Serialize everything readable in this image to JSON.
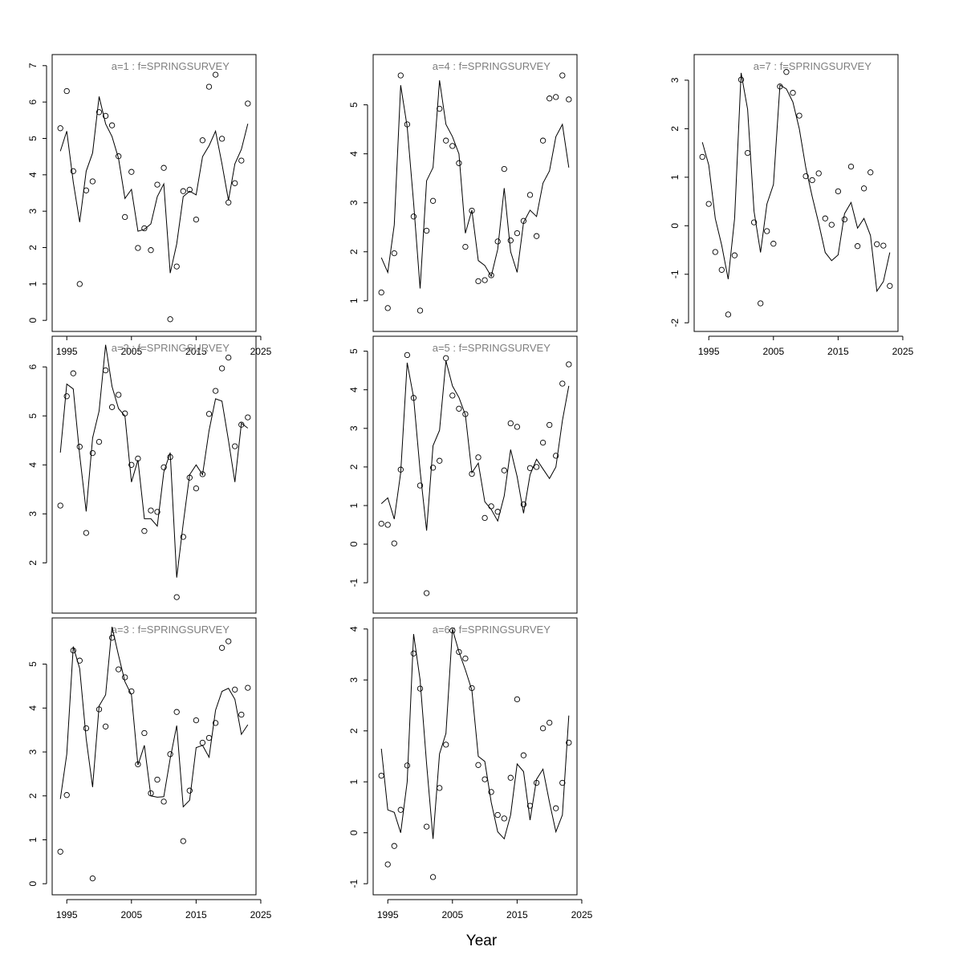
{
  "figure": {
    "xlabel": "Year"
  },
  "chart_data": [
    {
      "type": "line",
      "title": "a=1  :  f=SPRINGSURVEY",
      "xlim": [
        1994,
        2023
      ],
      "ylim": [
        0,
        7
      ],
      "x_ticks": [
        1995,
        2005,
        2015,
        2025
      ],
      "y_ticks": [
        0,
        1,
        2,
        3,
        4,
        5,
        6,
        7
      ],
      "series": [
        {
          "kind": "fitted-line",
          "x": [
            1994,
            1995,
            1996,
            1997,
            1998,
            1999,
            2000,
            2001,
            2002,
            2003,
            2004,
            2005,
            2006,
            2007,
            2008,
            2009,
            2010,
            2011,
            2012,
            2013,
            2014,
            2015,
            2016,
            2017,
            2018,
            2019,
            2020,
            2021,
            2022,
            2023
          ],
          "y": [
            4.65,
            5.2,
            3.8,
            2.7,
            4.1,
            4.6,
            6.15,
            5.4,
            5.05,
            4.45,
            3.35,
            3.6,
            2.45,
            2.5,
            2.65,
            3.4,
            3.75,
            1.3,
            2.1,
            3.4,
            3.55,
            3.45,
            4.5,
            4.8,
            5.2,
            4.3,
            3.3,
            4.3,
            4.7,
            5.4
          ]
        },
        {
          "kind": "observed",
          "x": [
            1994,
            1995,
            1996,
            1997,
            1998,
            1999,
            2000,
            2001,
            2002,
            2003,
            2004,
            2005,
            2006,
            2007,
            2008,
            2009,
            2010,
            2011,
            2012,
            2013,
            2014,
            2015,
            2016,
            2017,
            2018,
            2019,
            2020,
            2021,
            2022,
            2023
          ],
          "y": [
            5.28,
            6.3,
            4.1,
            1.0,
            3.57,
            3.82,
            5.72,
            5.62,
            5.36,
            4.51,
            2.84,
            4.08,
            1.99,
            2.53,
            1.93,
            3.73,
            4.19,
            0.03,
            1.48,
            3.55,
            3.59,
            2.77,
            4.95,
            6.42,
            6.75,
            4.99,
            3.24,
            3.77,
            4.39,
            5.96
          ]
        }
      ]
    },
    {
      "type": "line",
      "title": "a=2  :  f=SPRINGSURVEY",
      "xlim": [
        1994,
        2023
      ],
      "ylim": [
        1.2,
        6.4
      ],
      "x_ticks": [],
      "y_ticks": [
        2,
        3,
        4,
        5,
        6
      ],
      "series": [
        {
          "kind": "fitted-line",
          "x": [
            1994,
            1995,
            1996,
            1997,
            1998,
            1999,
            2000,
            2001,
            2002,
            2003,
            2004,
            2005,
            2006,
            2007,
            2008,
            2009,
            2010,
            2011,
            2012,
            2013,
            2014,
            2015,
            2016,
            2017,
            2018,
            2019,
            2020,
            2021,
            2022,
            2023
          ],
          "y": [
            4.25,
            5.65,
            5.55,
            4.2,
            3.05,
            4.55,
            5.1,
            6.45,
            5.6,
            5.15,
            5.0,
            3.65,
            4.1,
            2.9,
            2.9,
            2.75,
            3.85,
            4.25,
            1.7,
            2.8,
            3.8,
            4.0,
            3.8,
            4.7,
            5.35,
            5.3,
            4.5,
            3.65,
            4.85,
            4.75
          ]
        },
        {
          "kind": "observed",
          "x": [
            1994,
            1995,
            1996,
            1997,
            1998,
            1999,
            2000,
            2001,
            2002,
            2003,
            2004,
            2005,
            2006,
            2007,
            2008,
            2009,
            2010,
            2011,
            2012,
            2013,
            2014,
            2015,
            2016,
            2017,
            2018,
            2019,
            2020,
            2021,
            2022,
            2023
          ],
          "y": [
            3.17,
            5.4,
            5.87,
            4.37,
            2.61,
            4.24,
            4.47,
            5.93,
            5.18,
            5.43,
            5.05,
            4.0,
            4.13,
            2.65,
            3.07,
            3.04,
            3.95,
            4.16,
            1.3,
            2.53,
            3.74,
            3.52,
            3.81,
            5.04,
            5.51,
            5.97,
            6.19,
            4.38,
            4.82,
            4.97
          ]
        }
      ]
    },
    {
      "type": "line",
      "title": "a=3  :  f=SPRINGSURVEY",
      "xlim": [
        1994,
        2023
      ],
      "ylim": [
        0,
        5.8
      ],
      "x_ticks": [
        1995,
        2005,
        2015,
        2025
      ],
      "y_ticks": [
        0,
        1,
        2,
        3,
        4,
        5
      ],
      "series": [
        {
          "kind": "fitted-line",
          "x": [
            1994,
            1995,
            1996,
            1997,
            1998,
            1999,
            2000,
            2001,
            2002,
            2003,
            2004,
            2005,
            2006,
            2007,
            2008,
            2009,
            2010,
            2011,
            2012,
            2013,
            2014,
            2015,
            2016,
            2017,
            2018,
            2019,
            2020,
            2021,
            2022,
            2023
          ],
          "y": [
            1.93,
            2.95,
            5.4,
            4.9,
            3.3,
            2.2,
            4.05,
            4.3,
            5.85,
            5.2,
            4.6,
            4.3,
            2.7,
            3.15,
            2.0,
            1.97,
            1.98,
            2.85,
            3.6,
            1.75,
            1.9,
            3.1,
            3.15,
            2.88,
            3.95,
            4.38,
            4.45,
            4.2,
            3.4,
            3.62
          ]
        },
        {
          "kind": "observed",
          "x": [
            1994,
            1995,
            1996,
            1997,
            1998,
            1999,
            2000,
            2001,
            2002,
            2003,
            2004,
            2005,
            2006,
            2007,
            2008,
            2009,
            2010,
            2011,
            2012,
            2013,
            2014,
            2015,
            2016,
            2017,
            2018,
            2019,
            2020,
            2021,
            2022,
            2023
          ],
          "y": [
            0.73,
            2.02,
            5.31,
            5.08,
            3.54,
            0.12,
            3.97,
            3.58,
            5.6,
            4.88,
            4.7,
            4.38,
            2.72,
            3.43,
            2.06,
            2.37,
            1.87,
            2.95,
            3.91,
            0.97,
            2.12,
            3.72,
            3.21,
            3.32,
            3.66,
            5.37,
            5.52,
            4.42,
            3.85,
            4.46
          ]
        }
      ]
    },
    {
      "type": "line",
      "title": "a=4  :  f=SPRINGSURVEY",
      "xlim": [
        1994,
        2023
      ],
      "ylim": [
        0.6,
        5.8
      ],
      "x_ticks": [],
      "y_ticks": [
        1,
        2,
        3,
        4,
        5
      ],
      "series": [
        {
          "kind": "fitted-line",
          "x": [
            1994,
            1995,
            1996,
            1997,
            1998,
            1999,
            2000,
            2001,
            2002,
            2003,
            2004,
            2005,
            2006,
            2007,
            2008,
            2009,
            2010,
            2011,
            2012,
            2013,
            2014,
            2015,
            2016,
            2017,
            2018,
            2019,
            2020,
            2021,
            2022,
            2023
          ],
          "y": [
            1.88,
            1.58,
            2.55,
            5.4,
            4.55,
            3.0,
            1.25,
            3.45,
            3.72,
            5.5,
            4.6,
            4.35,
            4.0,
            2.38,
            2.85,
            1.82,
            1.72,
            1.5,
            2.05,
            3.3,
            2.0,
            1.58,
            2.6,
            2.85,
            2.72,
            3.4,
            3.65,
            4.35,
            4.6,
            3.72
          ]
        },
        {
          "kind": "observed",
          "x": [
            1994,
            1995,
            1996,
            1997,
            1998,
            1999,
            2000,
            2001,
            2002,
            2003,
            2004,
            2005,
            2006,
            2007,
            2008,
            2009,
            2010,
            2011,
            2012,
            2013,
            2014,
            2015,
            2016,
            2017,
            2018,
            2019,
            2020,
            2021,
            2022,
            2023
          ],
          "y": [
            1.17,
            0.85,
            1.97,
            5.6,
            4.6,
            2.72,
            0.8,
            2.43,
            3.04,
            4.92,
            4.27,
            4.16,
            3.81,
            2.1,
            2.84,
            1.4,
            1.42,
            1.52,
            2.21,
            3.69,
            2.23,
            2.38,
            2.63,
            3.16,
            2.32,
            4.27,
            5.13,
            5.16,
            5.6,
            5.11
          ]
        }
      ]
    },
    {
      "type": "line",
      "title": "a=5  :  f=SPRINGSURVEY",
      "xlim": [
        1994,
        2023
      ],
      "ylim": [
        -1.5,
        5.1
      ],
      "x_ticks": [],
      "y_ticks": [
        -1,
        0,
        1,
        2,
        3,
        4,
        5
      ],
      "series": [
        {
          "kind": "fitted-line",
          "x": [
            1994,
            1995,
            1996,
            1997,
            1998,
            1999,
            2000,
            2001,
            2002,
            2003,
            2004,
            2005,
            2006,
            2007,
            2008,
            2009,
            2010,
            2011,
            2012,
            2013,
            2014,
            2015,
            2016,
            2017,
            2018,
            2019,
            2020,
            2021,
            2022,
            2023
          ],
          "y": [
            1.05,
            1.2,
            0.65,
            1.85,
            4.7,
            3.8,
            1.9,
            0.35,
            2.55,
            2.95,
            4.75,
            4.1,
            3.8,
            3.35,
            1.85,
            2.1,
            1.1,
            0.9,
            0.6,
            1.25,
            2.45,
            1.75,
            0.8,
            1.8,
            2.2,
            1.95,
            1.7,
            2.0,
            3.2,
            4.1
          ]
        },
        {
          "kind": "observed",
          "x": [
            1994,
            1995,
            1996,
            1997,
            1998,
            1999,
            2000,
            2001,
            2002,
            2003,
            2004,
            2005,
            2006,
            2007,
            2008,
            2009,
            2010,
            2011,
            2012,
            2013,
            2014,
            2015,
            2016,
            2017,
            2018,
            2019,
            2020,
            2021,
            2022,
            2023
          ],
          "y": [
            0.53,
            0.5,
            0.02,
            1.93,
            4.9,
            3.79,
            1.52,
            -1.27,
            1.98,
            2.16,
            4.82,
            3.85,
            3.51,
            3.37,
            1.82,
            2.25,
            0.68,
            0.98,
            0.84,
            1.91,
            3.13,
            3.04,
            1.03,
            1.97,
            2.0,
            2.63,
            3.09,
            2.29,
            4.16,
            4.66
          ]
        }
      ]
    },
    {
      "type": "line",
      "title": "a=6  :  f=SPRINGSURVEY",
      "xlim": [
        1994,
        2023
      ],
      "ylim": [
        -1.0,
        4.0
      ],
      "x_ticks": [
        1995,
        2005,
        2015,
        2025
      ],
      "y_ticks": [
        -1,
        0,
        1,
        2,
        3,
        4
      ],
      "series": [
        {
          "kind": "fitted-line",
          "x": [
            1994,
            1995,
            1996,
            1997,
            1998,
            1999,
            2000,
            2001,
            2002,
            2003,
            2004,
            2005,
            2006,
            2007,
            2008,
            2009,
            2010,
            2011,
            2012,
            2013,
            2014,
            2015,
            2016,
            2017,
            2018,
            2019,
            2020,
            2021,
            2022,
            2023
          ],
          "y": [
            1.65,
            0.45,
            0.4,
            0.0,
            1.0,
            3.9,
            3.0,
            1.35,
            -0.12,
            1.55,
            1.95,
            4.0,
            3.55,
            3.2,
            2.8,
            1.5,
            1.4,
            0.6,
            0.02,
            -0.12,
            0.35,
            1.35,
            1.2,
            0.25,
            1.05,
            1.25,
            0.6,
            0.02,
            0.35,
            2.3
          ]
        },
        {
          "kind": "observed",
          "x": [
            1994,
            1995,
            1996,
            1997,
            1998,
            1999,
            2000,
            2001,
            2002,
            2003,
            2004,
            2005,
            2006,
            2007,
            2008,
            2009,
            2010,
            2011,
            2012,
            2013,
            2014,
            2015,
            2016,
            2017,
            2018,
            2019,
            2020,
            2021,
            2022,
            2023
          ],
          "y": [
            1.12,
            -0.62,
            -0.26,
            0.45,
            1.32,
            3.52,
            2.83,
            0.12,
            -0.87,
            0.88,
            1.73,
            3.97,
            3.55,
            3.42,
            2.84,
            1.33,
            1.05,
            0.8,
            0.35,
            0.28,
            1.08,
            2.62,
            1.52,
            0.53,
            0.98,
            2.05,
            2.16,
            0.48,
            0.98,
            1.77
          ]
        }
      ]
    },
    {
      "type": "line",
      "title": "a=7  :  f=SPRINGSURVEY",
      "xlim": [
        1994,
        2023
      ],
      "ylim": [
        -1.95,
        3.3
      ],
      "x_ticks": [
        1995,
        2005,
        2015,
        2025
      ],
      "y_ticks": [
        -2,
        -1,
        0,
        1,
        2,
        3
      ],
      "series": [
        {
          "kind": "fitted-line",
          "x": [
            1994,
            1995,
            1996,
            1997,
            1998,
            1999,
            2000,
            2001,
            2002,
            2003,
            2004,
            2005,
            2006,
            2007,
            2008,
            2009,
            2010,
            2011,
            2012,
            2013,
            2014,
            2015,
            2016,
            2017,
            2018,
            2019,
            2020,
            2021,
            2022,
            2023
          ],
          "y": [
            1.72,
            1.25,
            0.15,
            -0.4,
            -1.1,
            0.15,
            3.15,
            2.4,
            0.3,
            -0.55,
            0.45,
            0.85,
            2.9,
            2.82,
            2.55,
            2.0,
            1.2,
            0.6,
            0.05,
            -0.55,
            -0.72,
            -0.6,
            0.25,
            0.48,
            -0.05,
            0.15,
            -0.2,
            -1.35,
            -1.15,
            -0.55
          ]
        },
        {
          "kind": "observed",
          "x": [
            1994,
            1995,
            1996,
            1997,
            1998,
            1999,
            2000,
            2001,
            2002,
            2003,
            2004,
            2005,
            2006,
            2007,
            2008,
            2009,
            2010,
            2011,
            2012,
            2013,
            2014,
            2015,
            2016,
            2017,
            2018,
            2019,
            2020,
            2021,
            2022,
            2023
          ],
          "y": [
            1.42,
            0.45,
            -0.54,
            -0.91,
            -1.83,
            -0.61,
            3.01,
            1.5,
            0.07,
            -1.6,
            -0.11,
            -0.37,
            2.87,
            3.17,
            2.74,
            2.27,
            1.02,
            0.94,
            1.08,
            0.15,
            0.02,
            0.71,
            0.13,
            1.22,
            -0.42,
            0.77,
            1.1,
            -0.38,
            -0.41,
            -1.24
          ]
        }
      ]
    }
  ]
}
